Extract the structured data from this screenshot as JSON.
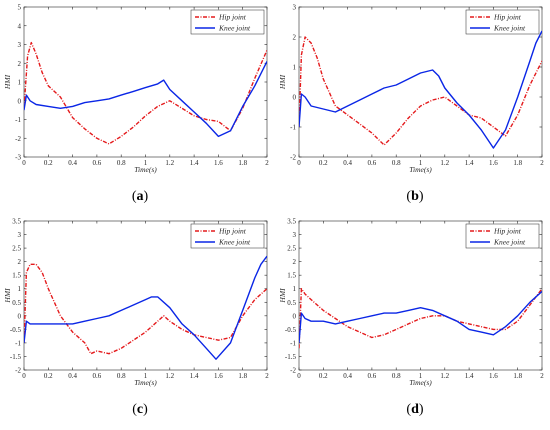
{
  "chart_data": [
    {
      "type": "line",
      "caption_open": "(",
      "caption_letter": "a",
      "caption_close": ")",
      "xlabel": "Time(s)",
      "ylabel": "HMI",
      "xlim": [
        0,
        2
      ],
      "ylim": [
        -3,
        5
      ],
      "xticks": [
        0,
        0.2,
        0.4,
        0.6,
        0.8,
        1,
        1.2,
        1.4,
        1.6,
        1.8,
        2
      ],
      "yticks": [
        -3,
        -2,
        -1,
        0,
        1,
        2,
        3,
        4,
        5
      ],
      "legend_position": "top-right",
      "series": [
        {
          "name": "Hip joint",
          "color": "#e41a1c",
          "style": "dashdot",
          "x": [
            0,
            0.03,
            0.06,
            0.1,
            0.15,
            0.2,
            0.3,
            0.4,
            0.5,
            0.6,
            0.7,
            0.8,
            0.9,
            1.0,
            1.1,
            1.2,
            1.3,
            1.4,
            1.5,
            1.6,
            1.7,
            1.8,
            1.9,
            2.0
          ],
          "y": [
            -0.4,
            2.4,
            3.1,
            2.5,
            1.5,
            0.8,
            0.2,
            -0.9,
            -1.5,
            -2.0,
            -2.3,
            -1.9,
            -1.4,
            -0.8,
            -0.3,
            0.0,
            -0.4,
            -0.8,
            -1.0,
            -1.1,
            -1.6,
            -0.4,
            1.2,
            2.7
          ]
        },
        {
          "name": "Knee joint",
          "color": "#0a26e6",
          "style": "solid",
          "x": [
            0,
            0.02,
            0.05,
            0.1,
            0.2,
            0.3,
            0.4,
            0.5,
            0.6,
            0.7,
            0.8,
            0.9,
            1.0,
            1.1,
            1.15,
            1.2,
            1.3,
            1.4,
            1.5,
            1.6,
            1.7,
            1.8,
            1.9,
            2.0
          ],
          "y": [
            -0.5,
            0.3,
            0.0,
            -0.2,
            -0.3,
            -0.4,
            -0.3,
            -0.1,
            0.0,
            0.1,
            0.3,
            0.5,
            0.7,
            0.9,
            1.1,
            0.6,
            0.0,
            -0.6,
            -1.2,
            -1.9,
            -1.6,
            -0.3,
            0.8,
            2.1
          ]
        }
      ]
    },
    {
      "type": "line",
      "caption_open": "(",
      "caption_letter": "b",
      "caption_close": ")",
      "xlabel": "Time(s)",
      "ylabel": "HMI",
      "xlim": [
        0,
        2
      ],
      "ylim": [
        -2,
        3
      ],
      "xticks": [
        0,
        0.2,
        0.4,
        0.6,
        0.8,
        1,
        1.2,
        1.4,
        1.6,
        1.8,
        2
      ],
      "yticks": [
        -2,
        -1,
        0,
        1,
        2,
        3
      ],
      "legend_position": "top-right",
      "series": [
        {
          "name": "Hip joint",
          "color": "#e41a1c",
          "style": "dashdot",
          "x": [
            0,
            0.02,
            0.05,
            0.1,
            0.15,
            0.2,
            0.3,
            0.4,
            0.5,
            0.6,
            0.7,
            0.8,
            0.9,
            1.0,
            1.1,
            1.2,
            1.3,
            1.4,
            1.5,
            1.6,
            1.7,
            1.8,
            1.9,
            2.0
          ],
          "y": [
            -1.0,
            1.4,
            2.0,
            1.8,
            1.3,
            0.6,
            -0.3,
            -0.6,
            -0.9,
            -1.2,
            -1.6,
            -1.2,
            -0.7,
            -0.3,
            -0.1,
            0.0,
            -0.3,
            -0.6,
            -0.7,
            -1.0,
            -1.3,
            -0.6,
            0.4,
            1.2
          ]
        },
        {
          "name": "Knee joint",
          "color": "#0a26e6",
          "style": "solid",
          "x": [
            0,
            0.02,
            0.05,
            0.1,
            0.2,
            0.3,
            0.4,
            0.5,
            0.6,
            0.7,
            0.8,
            0.9,
            1.0,
            1.1,
            1.15,
            1.2,
            1.3,
            1.4,
            1.5,
            1.6,
            1.7,
            1.8,
            1.9,
            1.95,
            2.0
          ],
          "y": [
            -1.0,
            0.1,
            0.0,
            -0.3,
            -0.4,
            -0.5,
            -0.3,
            -0.1,
            0.1,
            0.3,
            0.4,
            0.6,
            0.8,
            0.9,
            0.7,
            0.3,
            -0.2,
            -0.6,
            -1.1,
            -1.7,
            -1.1,
            0.0,
            1.2,
            1.8,
            2.2
          ]
        }
      ]
    },
    {
      "type": "line",
      "caption_open": "(",
      "caption_letter": "c",
      "caption_close": ")",
      "xlabel": "Time(s)",
      "ylabel": "HMI",
      "xlim": [
        0,
        2
      ],
      "ylim": [
        -2,
        3.5
      ],
      "xticks": [
        0,
        0.2,
        0.4,
        0.6,
        0.8,
        1,
        1.2,
        1.4,
        1.6,
        1.8,
        2
      ],
      "yticks": [
        -2,
        -1.5,
        -1,
        -0.5,
        0,
        0.5,
        1,
        1.5,
        2,
        2.5,
        3,
        3.5
      ],
      "legend_position": "top-right",
      "series": [
        {
          "name": "Hip joint",
          "color": "#e41a1c",
          "style": "dashdot",
          "x": [
            0,
            0.02,
            0.05,
            0.1,
            0.15,
            0.2,
            0.3,
            0.4,
            0.5,
            0.55,
            0.6,
            0.7,
            0.8,
            0.9,
            1.0,
            1.1,
            1.15,
            1.2,
            1.3,
            1.4,
            1.5,
            1.6,
            1.7,
            1.8,
            1.9,
            2.0
          ],
          "y": [
            -1.0,
            1.6,
            1.9,
            1.9,
            1.6,
            1.0,
            0.0,
            -0.6,
            -1.0,
            -1.4,
            -1.3,
            -1.4,
            -1.2,
            -0.9,
            -0.6,
            -0.2,
            0.0,
            -0.2,
            -0.5,
            -0.7,
            -0.8,
            -0.9,
            -0.8,
            0.0,
            0.6,
            1.0
          ]
        },
        {
          "name": "Knee joint",
          "color": "#0a26e6",
          "style": "solid",
          "x": [
            0,
            0.02,
            0.05,
            0.1,
            0.2,
            0.3,
            0.4,
            0.5,
            0.6,
            0.7,
            0.8,
            0.9,
            1.0,
            1.05,
            1.1,
            1.2,
            1.3,
            1.4,
            1.5,
            1.58,
            1.7,
            1.8,
            1.9,
            1.95,
            2.0
          ],
          "y": [
            -1.0,
            -0.2,
            -0.3,
            -0.3,
            -0.3,
            -0.3,
            -0.3,
            -0.2,
            -0.1,
            0.0,
            0.2,
            0.4,
            0.6,
            0.7,
            0.7,
            0.3,
            -0.3,
            -0.7,
            -1.2,
            -1.6,
            -1.0,
            0.2,
            1.4,
            1.9,
            2.2
          ]
        }
      ]
    },
    {
      "type": "line",
      "caption_open": "(",
      "caption_letter": "d",
      "caption_close": ")",
      "xlabel": "Time(s)",
      "ylabel": "HMI",
      "xlim": [
        0,
        2
      ],
      "ylim": [
        -2,
        3.5
      ],
      "xticks": [
        0,
        0.2,
        0.4,
        0.6,
        0.8,
        1,
        1.2,
        1.4,
        1.6,
        1.8,
        2
      ],
      "yticks": [
        -2,
        -1.5,
        -1,
        -0.5,
        0,
        0.5,
        1,
        1.5,
        2,
        2.5,
        3,
        3.5
      ],
      "legend_position": "top-right",
      "series": [
        {
          "name": "Hip joint",
          "color": "#e41a1c",
          "style": "dashdot",
          "x": [
            0,
            0.02,
            0.05,
            0.1,
            0.2,
            0.3,
            0.4,
            0.5,
            0.6,
            0.7,
            0.8,
            0.9,
            1.0,
            1.1,
            1.2,
            1.3,
            1.4,
            1.5,
            1.6,
            1.7,
            1.8,
            1.9,
            2.0
          ],
          "y": [
            -1.2,
            1.0,
            0.8,
            0.6,
            0.2,
            -0.1,
            -0.4,
            -0.6,
            -0.8,
            -0.7,
            -0.5,
            -0.3,
            -0.1,
            0.0,
            0.0,
            -0.2,
            -0.3,
            -0.4,
            -0.5,
            -0.5,
            -0.2,
            0.4,
            1.0
          ]
        },
        {
          "name": "Knee joint",
          "color": "#0a26e6",
          "style": "solid",
          "x": [
            0,
            0.02,
            0.05,
            0.1,
            0.2,
            0.3,
            0.4,
            0.5,
            0.6,
            0.7,
            0.8,
            0.9,
            1.0,
            1.1,
            1.2,
            1.3,
            1.4,
            1.5,
            1.6,
            1.7,
            1.8,
            1.9,
            2.0
          ],
          "y": [
            -1.0,
            0.1,
            -0.1,
            -0.2,
            -0.2,
            -0.3,
            -0.2,
            -0.1,
            0.0,
            0.1,
            0.1,
            0.2,
            0.3,
            0.2,
            0.0,
            -0.2,
            -0.5,
            -0.6,
            -0.7,
            -0.4,
            0.0,
            0.5,
            0.9
          ]
        }
      ]
    }
  ]
}
